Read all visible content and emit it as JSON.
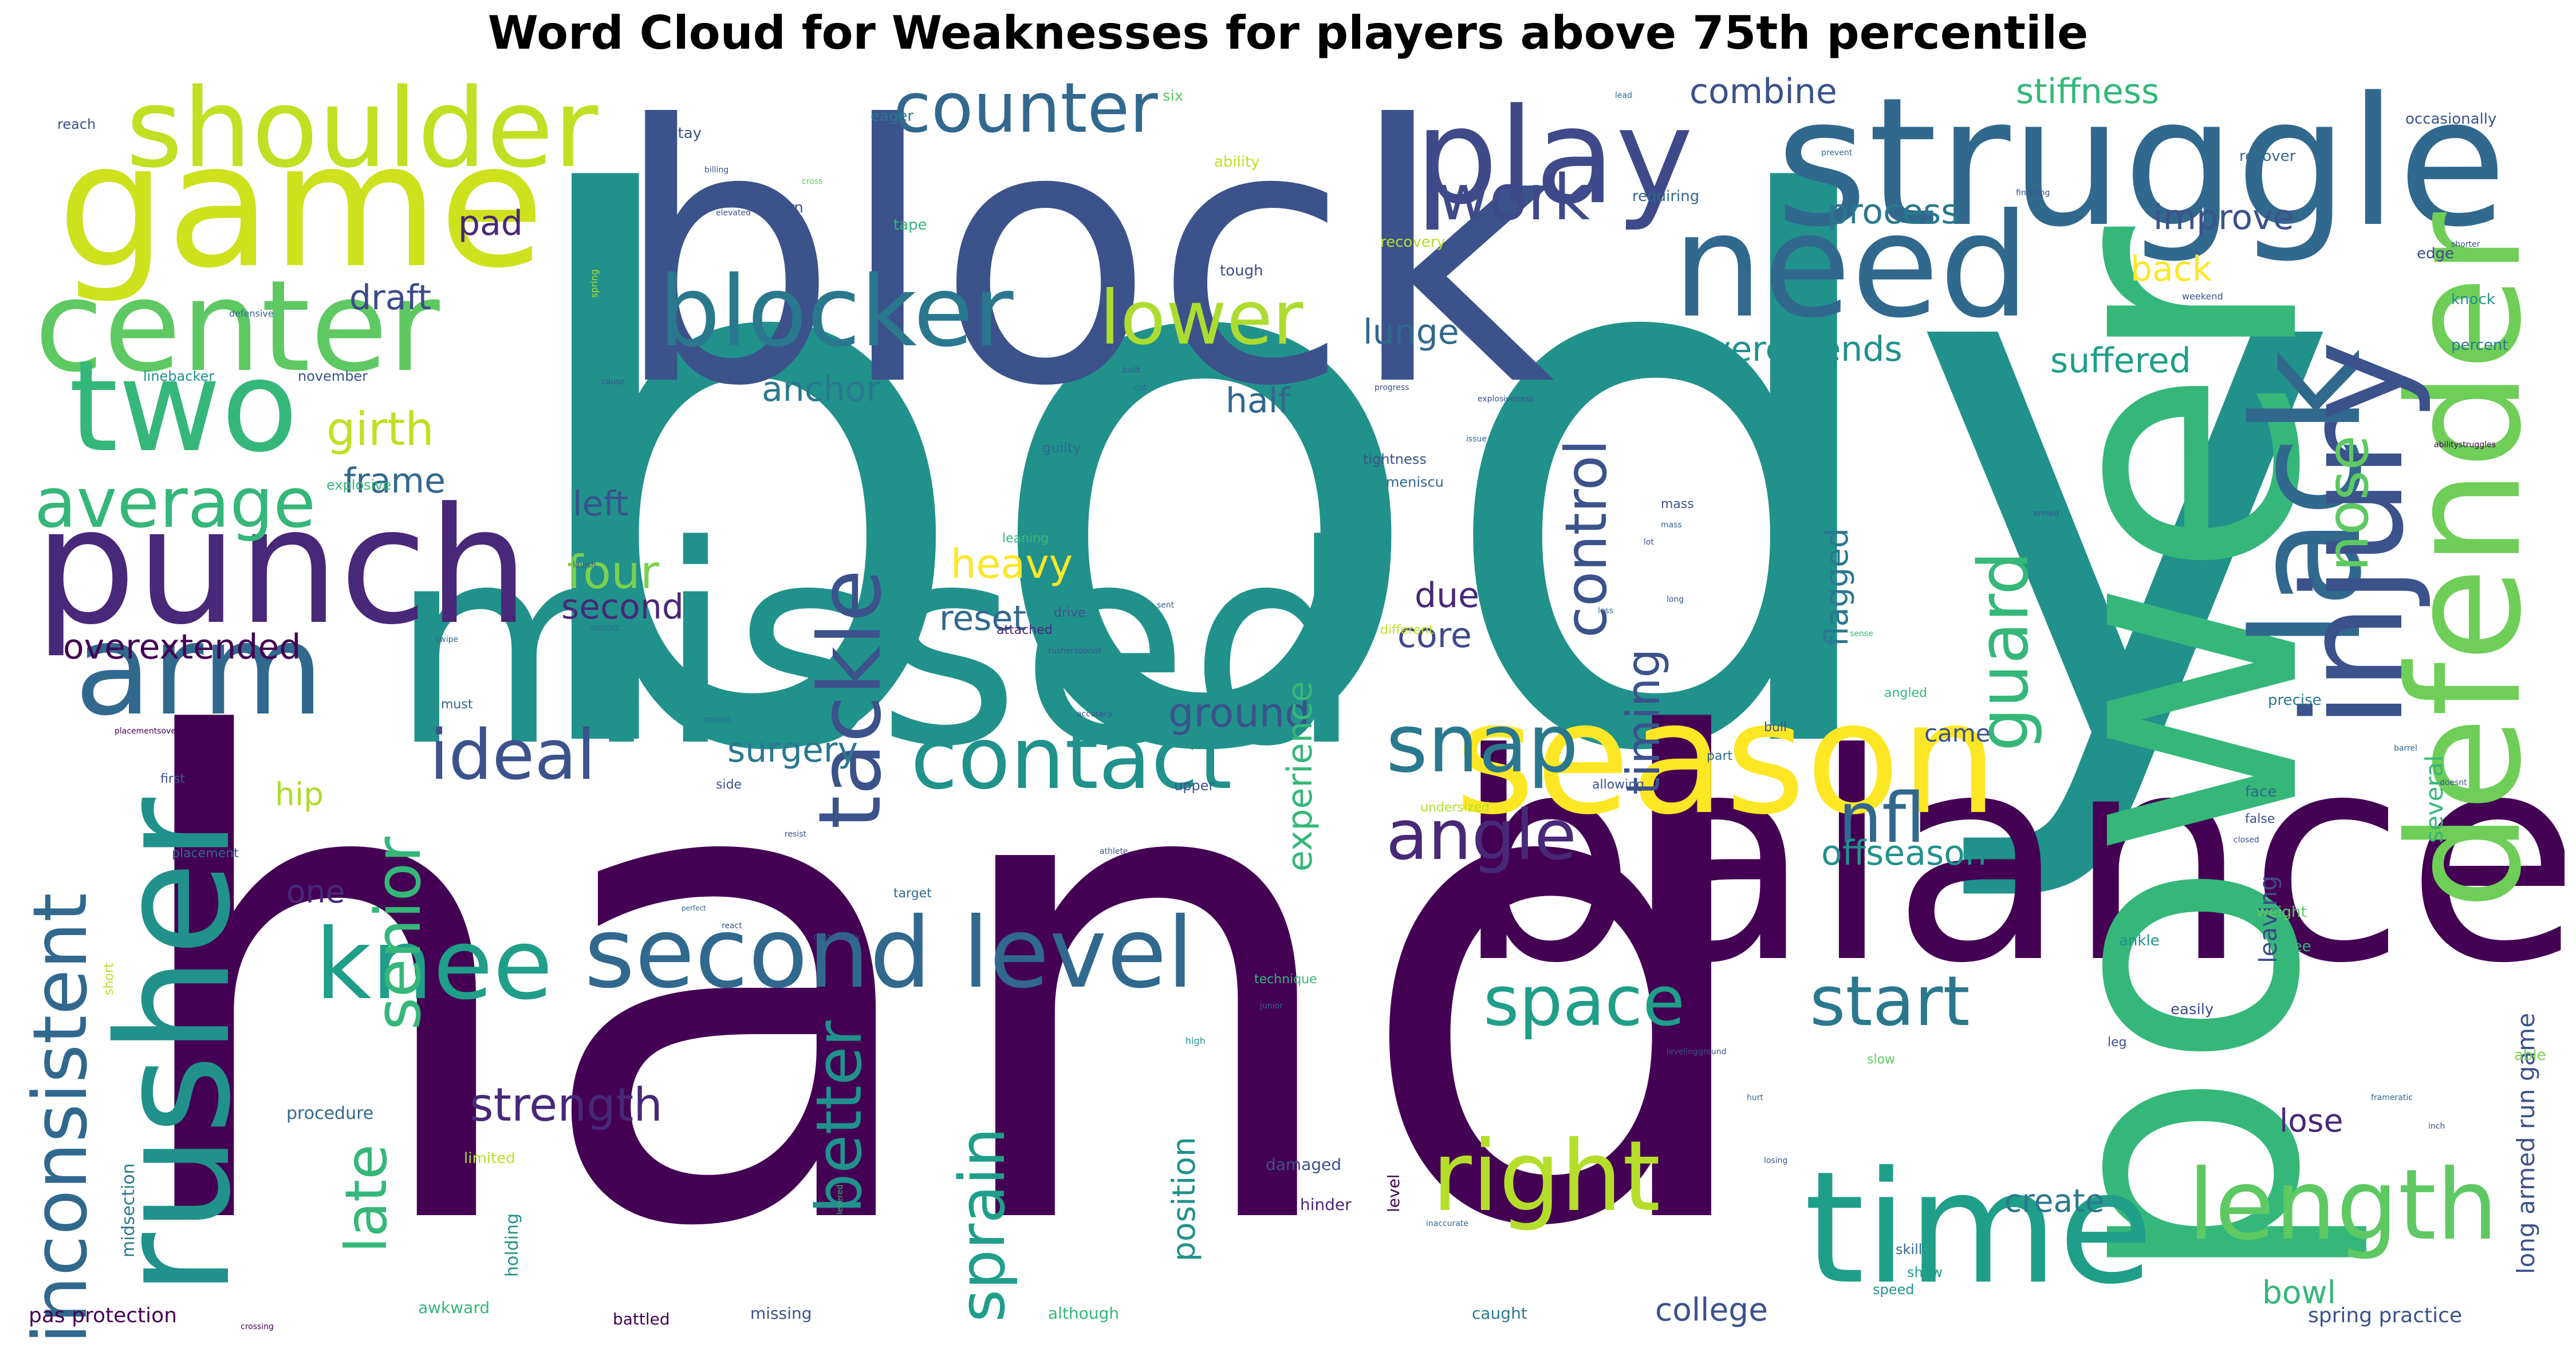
{
  "title": "Word Cloud for Weaknesses for players above 75th percentile",
  "palette": [
    "#440154",
    "#3b528b",
    "#21918c",
    "#5ec962",
    "#fde725",
    "#31688e",
    "#35b779",
    "#b5de2b"
  ],
  "words": [
    {
      "text": "body",
      "c": "#21918c"
    },
    {
      "text": "hand",
      "c": "#440154"
    },
    {
      "text": "block",
      "c": "#3b528b"
    },
    {
      "text": "missed",
      "c": "#21918c"
    },
    {
      "text": "balance",
      "c": "#440154"
    },
    {
      "text": "power",
      "c": "#35b779"
    },
    {
      "text": "struggle",
      "c": "#31688e"
    },
    {
      "text": "game",
      "c": "#cde11d"
    },
    {
      "text": "punch",
      "c": "#482878"
    },
    {
      "text": "rusher",
      "c": "#21918c"
    },
    {
      "text": "season",
      "c": "#fde725"
    },
    {
      "text": "lack",
      "c": "#31688e"
    },
    {
      "text": "defender",
      "c": "#6ece58"
    },
    {
      "text": "injury",
      "c": "#3b528b"
    },
    {
      "text": "time",
      "c": "#1f9e89"
    },
    {
      "text": "need",
      "c": "#31688e"
    },
    {
      "text": "play",
      "c": "#3e4a89"
    },
    {
      "text": "center",
      "c": "#5ec962"
    },
    {
      "text": "two",
      "c": "#35b779"
    },
    {
      "text": "arm",
      "c": "#31688e"
    },
    {
      "text": "shoulder",
      "c": "#c2df23"
    },
    {
      "text": "blocker",
      "c": "#2a788e"
    },
    {
      "text": "second level",
      "c": "#31688e"
    },
    {
      "text": "knee",
      "c": "#1f9e89"
    },
    {
      "text": "contact",
      "c": "#21918c"
    },
    {
      "text": "right",
      "c": "#b5de2b"
    },
    {
      "text": "length",
      "c": "#5ec962"
    },
    {
      "text": "tackle",
      "c": "#3b528b"
    },
    {
      "text": "inconsistent",
      "c": "#31688e"
    },
    {
      "text": "average",
      "c": "#35b779"
    },
    {
      "text": "counter",
      "c": "#31688e"
    },
    {
      "text": "lower",
      "c": "#addc30"
    },
    {
      "text": "snap",
      "c": "#2a788e"
    },
    {
      "text": "angle",
      "c": "#482878"
    },
    {
      "text": "ideal",
      "c": "#3b528b"
    },
    {
      "text": "senior",
      "c": "#35b779"
    },
    {
      "text": "better",
      "c": "#21918c"
    },
    {
      "text": "sprain",
      "c": "#1f9e89"
    },
    {
      "text": "start",
      "c": "#2a788e"
    },
    {
      "text": "space",
      "c": "#1f9e89"
    },
    {
      "text": "nfl",
      "c": "#31688e"
    },
    {
      "text": "guard",
      "c": "#35b779"
    },
    {
      "text": "nose",
      "c": "#5ec962"
    },
    {
      "text": "work",
      "c": "#3e4a89"
    },
    {
      "text": "control",
      "c": "#3b528b"
    },
    {
      "text": "timing",
      "c": "#3b528b"
    },
    {
      "text": "strength",
      "c": "#482878"
    },
    {
      "text": "late",
      "c": "#35b779"
    },
    {
      "text": "girth",
      "c": "#c2df23"
    },
    {
      "text": "frame",
      "c": "#31688e"
    },
    {
      "text": "heavy",
      "c": "#fde725"
    },
    {
      "text": "four",
      "c": "#7ad151"
    },
    {
      "text": "left",
      "c": "#3b528b"
    },
    {
      "text": "second",
      "c": "#482878"
    },
    {
      "text": "reset",
      "c": "#31688e"
    },
    {
      "text": "surgery",
      "c": "#2a788e"
    },
    {
      "text": "ground",
      "c": "#3b528b"
    },
    {
      "text": "due",
      "c": "#482878"
    },
    {
      "text": "core",
      "c": "#3e4a89"
    },
    {
      "text": "half",
      "c": "#31688e"
    },
    {
      "text": "anchor",
      "c": "#2a788e"
    },
    {
      "text": "lunge",
      "c": "#31688e"
    },
    {
      "text": "draft",
      "c": "#3e4a89"
    },
    {
      "text": "pad",
      "c": "#482878"
    },
    {
      "text": "process",
      "c": "#2a788e"
    },
    {
      "text": "combine",
      "c": "#3b528b"
    },
    {
      "text": "stiffness",
      "c": "#35b779"
    },
    {
      "text": "improve",
      "c": "#3b528b"
    },
    {
      "text": "back",
      "c": "#fde725"
    },
    {
      "text": "overextends",
      "c": "#21918c"
    },
    {
      "text": "suffered",
      "c": "#1f9e89"
    },
    {
      "text": "offseason",
      "c": "#21918c"
    },
    {
      "text": "experience",
      "c": "#35b779"
    },
    {
      "text": "overextended",
      "c": "#440154"
    },
    {
      "text": "one",
      "c": "#482878"
    },
    {
      "text": "hip",
      "c": "#addc30"
    },
    {
      "text": "flagged",
      "c": "#2a788e"
    },
    {
      "text": "position",
      "c": "#21918c"
    },
    {
      "text": "create",
      "c": "#2a788e"
    },
    {
      "text": "college",
      "c": "#3b528b"
    },
    {
      "text": "bowl",
      "c": "#35b779"
    },
    {
      "text": "lose",
      "c": "#482878"
    },
    {
      "text": "long armed run game",
      "c": "#3b528b"
    },
    {
      "text": "several",
      "c": "#35b779"
    },
    {
      "text": "leaving",
      "c": "#3e4a89"
    },
    {
      "text": "came",
      "c": "#3b528b"
    },
    {
      "text": "pas protection",
      "c": "#440154"
    },
    {
      "text": "spring practice",
      "c": "#3b528b"
    },
    {
      "text": "procedure",
      "c": "#31688e"
    },
    {
      "text": "midsection",
      "c": "#2a788e"
    },
    {
      "text": "holding",
      "c": "#21918c"
    },
    {
      "text": "battled",
      "c": "#440154"
    },
    {
      "text": "awkward",
      "c": "#35b779"
    },
    {
      "text": "missing",
      "c": "#3b528b"
    },
    {
      "text": "although",
      "c": "#35b779"
    },
    {
      "text": "caught",
      "c": "#2a788e"
    },
    {
      "text": "show",
      "c": "#1f9e89"
    },
    {
      "text": "speed",
      "c": "#21918c"
    },
    {
      "text": "skill",
      "c": "#31688e"
    },
    {
      "text": "damaged",
      "c": "#3b528b"
    },
    {
      "text": "hinder",
      "c": "#482878"
    },
    {
      "text": "level",
      "c": "#440154"
    },
    {
      "text": "limited",
      "c": "#b5de2b"
    },
    {
      "text": "upper",
      "c": "#3b528b"
    },
    {
      "text": "ankle",
      "c": "#21918c"
    },
    {
      "text": "easily",
      "c": "#3e4a89"
    },
    {
      "text": "able",
      "c": "#7ad151"
    },
    {
      "text": "see",
      "c": "#35b779"
    },
    {
      "text": "precise",
      "c": "#2a788e"
    },
    {
      "text": "face",
      "c": "#31688e"
    },
    {
      "text": "weight",
      "c": "#5ec962"
    },
    {
      "text": "edge",
      "c": "#3e4a89"
    },
    {
      "text": "knock",
      "c": "#21918c"
    },
    {
      "text": "percent",
      "c": "#2a788e"
    },
    {
      "text": "tough",
      "c": "#3e4a89"
    },
    {
      "text": "recovery",
      "c": "#b5de2b"
    },
    {
      "text": "ability",
      "c": "#c2df23"
    },
    {
      "text": "tape",
      "c": "#35b779"
    },
    {
      "text": "torn",
      "c": "#3b528b"
    },
    {
      "text": "eager",
      "c": "#2a788e"
    },
    {
      "text": "stay",
      "c": "#3b528b"
    },
    {
      "text": "six",
      "c": "#5ec962"
    },
    {
      "text": "requiring",
      "c": "#31688e"
    },
    {
      "text": "recover",
      "c": "#31688e"
    },
    {
      "text": "occasionally",
      "c": "#3b528b"
    },
    {
      "text": "reach",
      "c": "#3b528b"
    },
    {
      "text": "linebacker",
      "c": "#21918c"
    },
    {
      "text": "november",
      "c": "#3b528b"
    },
    {
      "text": "explosive",
      "c": "#35b779"
    },
    {
      "text": "guilty",
      "c": "#31688e"
    },
    {
      "text": "tightness",
      "c": "#3b528b"
    },
    {
      "text": "meniscu",
      "c": "#31688e"
    },
    {
      "text": "leaning",
      "c": "#35b779"
    },
    {
      "text": "drive",
      "c": "#3b528b"
    },
    {
      "text": "attached",
      "c": "#482878"
    },
    {
      "text": "different",
      "c": "#c2df23"
    },
    {
      "text": "mass",
      "c": "#3b528b"
    },
    {
      "text": "must",
      "c": "#31688e"
    },
    {
      "text": "first",
      "c": "#3b528b"
    },
    {
      "text": "placement",
      "c": "#31688e"
    },
    {
      "text": "side",
      "c": "#3b528b"
    },
    {
      "text": "target",
      "c": "#31688e"
    },
    {
      "text": "undersized",
      "c": "#b5de2b"
    },
    {
      "text": "allowing",
      "c": "#3b528b"
    },
    {
      "text": "part",
      "c": "#31688e"
    },
    {
      "text": "bull",
      "c": "#3b528b"
    },
    {
      "text": "angled",
      "c": "#35b779"
    },
    {
      "text": "false",
      "c": "#3b528b"
    },
    {
      "text": "technique",
      "c": "#35b779"
    },
    {
      "text": "slow",
      "c": "#5ec962"
    },
    {
      "text": "leg",
      "c": "#3b528b"
    },
    {
      "text": "short",
      "c": "#b5de2b"
    },
    {
      "text": "defensive",
      "c": "#31688e"
    },
    {
      "text": "elevated",
      "c": "#3b528b"
    },
    {
      "text": "spring",
      "c": "#b5de2b"
    },
    {
      "text": "weekend",
      "c": "#3b528b"
    },
    {
      "text": "high",
      "c": "#21918c"
    },
    {
      "text": "junior",
      "c": "#31688e"
    },
    {
      "text": "react",
      "c": "#3b528b"
    },
    {
      "text": "perfect",
      "c": "#31688e"
    },
    {
      "text": "athlete",
      "c": "#3b528b"
    },
    {
      "text": "progress",
      "c": "#3b528b"
    },
    {
      "text": "explosiveness",
      "c": "#3b528b"
    },
    {
      "text": "issue",
      "c": "#31688e"
    },
    {
      "text": "armed",
      "c": "#3b528b"
    },
    {
      "text": "cross",
      "c": "#5ec962"
    },
    {
      "text": "finishing",
      "c": "#3b528b"
    },
    {
      "text": "hurt",
      "c": "#31688e"
    },
    {
      "text": "losing",
      "c": "#3b528b"
    },
    {
      "text": "inaccurate",
      "c": "#31688e"
    },
    {
      "text": "levered",
      "c": "#35b779"
    },
    {
      "text": "accuracy",
      "c": "#3b528b"
    },
    {
      "text": "crossing",
      "c": "#440154"
    },
    {
      "text": "sense",
      "c": "#35b779"
    },
    {
      "text": "closed",
      "c": "#3b528b"
    },
    {
      "text": "barrel",
      "c": "#31688e"
    },
    {
      "text": "doesnt",
      "c": "#3b528b"
    },
    {
      "text": "shorter",
      "c": "#3b528b"
    },
    {
      "text": "frameratic",
      "c": "#31688e"
    },
    {
      "text": "inch",
      "c": "#3b528b"
    },
    {
      "text": "abilitystruggles",
      "c": "#440154"
    },
    {
      "text": "levelingground",
      "c": "#3b528b"
    },
    {
      "text": "rushersdonot",
      "c": "#3b528b"
    },
    {
      "text": "instinct",
      "c": "#31688e"
    },
    {
      "text": "placementsoverextends",
      "c": "#440154"
    },
    {
      "text": "contactonly",
      "c": "#3b528b"
    },
    {
      "text": "lead",
      "c": "#31688e"
    },
    {
      "text": "billing",
      "c": "#3b528b"
    },
    {
      "text": "prevent",
      "c": "#31688e"
    },
    {
      "text": "lavish",
      "c": "#3b528b"
    },
    {
      "text": "sent",
      "c": "#31688e"
    },
    {
      "text": "lot",
      "c": "#3b528b"
    },
    {
      "text": "loss",
      "c": "#31688e"
    },
    {
      "text": "built",
      "c": "#3b528b"
    },
    {
      "text": "cut",
      "c": "#31688e"
    },
    {
      "text": "cause",
      "c": "#3b528b"
    },
    {
      "text": "tossed",
      "c": "#31688e"
    },
    {
      "text": "resist",
      "c": "#3b528b"
    },
    {
      "text": "swipe",
      "c": "#31688e"
    },
    {
      "text": "long",
      "c": "#3b528b"
    },
    {
      "text": "mass",
      "c": "#31688e"
    }
  ]
}
